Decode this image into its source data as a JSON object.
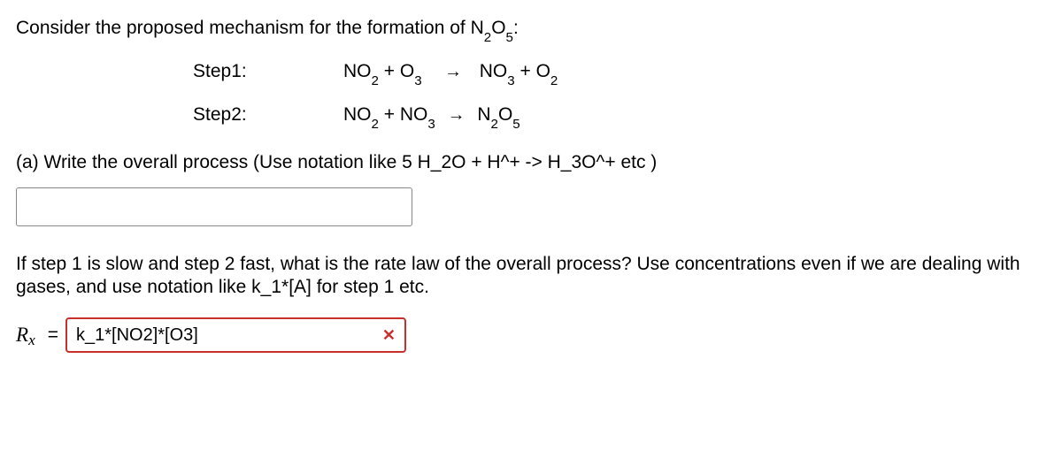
{
  "intro": {
    "prefix": "Consider the proposed mechanism for the formation of ",
    "species": "N2O5",
    "suffix": ":"
  },
  "steps": {
    "step1": {
      "label": "Step1:",
      "lhs1": "NO2",
      "plus1": " + ",
      "lhs2": "O3",
      "arrow": "→",
      "rhs1": "NO3",
      "plus2": " + ",
      "rhs2": "O2"
    },
    "step2": {
      "label": "Step2:",
      "lhs1": "NO2",
      "plus1": " + ",
      "lhs2": "NO3",
      "arrow": "→",
      "rhs1": "N2O5"
    }
  },
  "partA": "(a) Write the overall process (Use notation like 5 H_2O + H^+ -> H_3O^+  etc )",
  "rateQ": "If step 1 is  slow  and step 2 fast, what is the rate law of the overall process? Use concentrations even if we are dealing with  gases,  and use notation like k_1*[A]  for step 1 etc.",
  "rateAnswer": {
    "labelR": "R",
    "labelX": "x",
    "equals": "=",
    "value": "k_1*[NO2]*[O3]",
    "mark": "✕"
  },
  "inputA": {
    "value": ""
  },
  "colors": {
    "error_border": "#c9302c",
    "input_border": "#888888",
    "text": "#000000",
    "bg": "#ffffff"
  }
}
